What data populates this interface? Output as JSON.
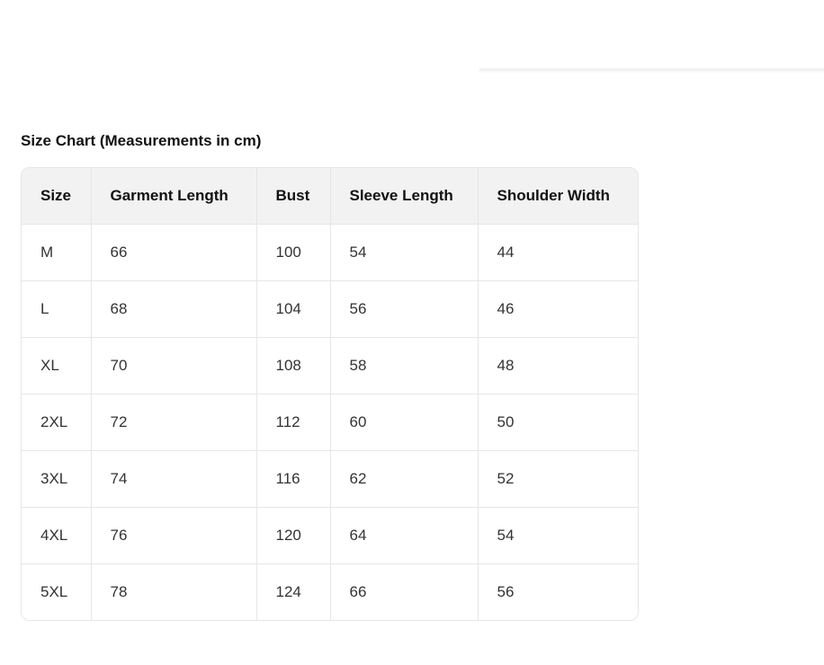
{
  "title": "Size Chart (Measurements in cm)",
  "table": {
    "headers": [
      "Size",
      "Garment Length",
      "Bust",
      "Sleeve Length",
      "Shoulder Width"
    ],
    "rows": [
      [
        "M",
        "66",
        "100",
        "54",
        "44"
      ],
      [
        "L",
        "68",
        "104",
        "56",
        "46"
      ],
      [
        "XL",
        "70",
        "108",
        "58",
        "48"
      ],
      [
        "2XL",
        "72",
        "112",
        "60",
        "50"
      ],
      [
        "3XL",
        "74",
        "116",
        "62",
        "52"
      ],
      [
        "4XL",
        "76",
        "120",
        "64",
        "54"
      ],
      [
        "5XL",
        "78",
        "124",
        "66",
        "56"
      ]
    ]
  }
}
